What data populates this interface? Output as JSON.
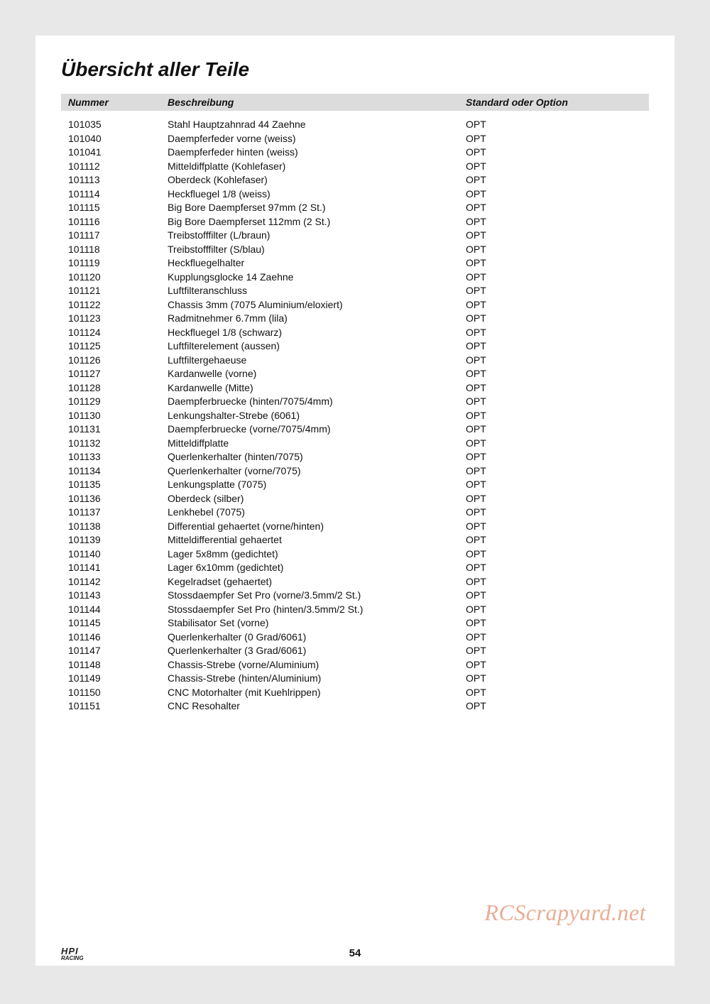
{
  "title": "Übersicht aller Teile",
  "headers": {
    "num": "Nummer",
    "desc": "Beschreibung",
    "opt": "Standard oder Option"
  },
  "rows": [
    {
      "num": "101035",
      "desc": "Stahl Hauptzahnrad 44 Zaehne",
      "opt": "OPT"
    },
    {
      "num": "101040",
      "desc": "Daempferfeder vorne (weiss)",
      "opt": "OPT"
    },
    {
      "num": "101041",
      "desc": "Daempferfeder hinten (weiss)",
      "opt": "OPT"
    },
    {
      "num": "101112",
      "desc": "Mitteldiffplatte (Kohlefaser)",
      "opt": "OPT"
    },
    {
      "num": "101113",
      "desc": "Oberdeck (Kohlefaser)",
      "opt": "OPT"
    },
    {
      "num": "101114",
      "desc": "Heckfluegel 1/8 (weiss)",
      "opt": "OPT"
    },
    {
      "num": "101115",
      "desc": "Big Bore Daempferset 97mm (2 St.)",
      "opt": "OPT"
    },
    {
      "num": "101116",
      "desc": "Big Bore Daempferset 112mm (2 St.)",
      "opt": "OPT"
    },
    {
      "num": "101117",
      "desc": "Treibstofffilter (L/braun)",
      "opt": "OPT"
    },
    {
      "num": "101118",
      "desc": "Treibstofffilter (S/blau)",
      "opt": "OPT"
    },
    {
      "num": "101119",
      "desc": "Heckfluegelhalter",
      "opt": "OPT"
    },
    {
      "num": "101120",
      "desc": "Kupplungsglocke 14 Zaehne",
      "opt": "OPT"
    },
    {
      "num": "101121",
      "desc": "Luftfilteranschluss",
      "opt": "OPT"
    },
    {
      "num": "101122",
      "desc": "Chassis 3mm (7075 Aluminium/eloxiert)",
      "opt": "OPT"
    },
    {
      "num": "101123",
      "desc": "Radmitnehmer 6.7mm (lila)",
      "opt": "OPT"
    },
    {
      "num": "101124",
      "desc": "Heckfluegel 1/8 (schwarz)",
      "opt": "OPT"
    },
    {
      "num": "101125",
      "desc": "Luftfilterelement (aussen)",
      "opt": "OPT"
    },
    {
      "num": "101126",
      "desc": "Luftfiltergehaeuse",
      "opt": "OPT"
    },
    {
      "num": "101127",
      "desc": "Kardanwelle (vorne)",
      "opt": "OPT"
    },
    {
      "num": "101128",
      "desc": "Kardanwelle (Mitte)",
      "opt": "OPT"
    },
    {
      "num": "101129",
      "desc": "Daempferbruecke (hinten/7075/4mm)",
      "opt": "OPT"
    },
    {
      "num": "101130",
      "desc": "Lenkungshalter-Strebe (6061)",
      "opt": "OPT"
    },
    {
      "num": "101131",
      "desc": "Daempferbruecke (vorne/7075/4mm)",
      "opt": "OPT"
    },
    {
      "num": "101132",
      "desc": "Mitteldiffplatte",
      "opt": "OPT"
    },
    {
      "num": "101133",
      "desc": "Querlenkerhalter (hinten/7075)",
      "opt": "OPT"
    },
    {
      "num": "101134",
      "desc": "Querlenkerhalter (vorne/7075)",
      "opt": "OPT"
    },
    {
      "num": "101135",
      "desc": "Lenkungsplatte (7075)",
      "opt": "OPT"
    },
    {
      "num": "101136",
      "desc": "Oberdeck (silber)",
      "opt": "OPT"
    },
    {
      "num": "101137",
      "desc": "Lenkhebel (7075)",
      "opt": "OPT"
    },
    {
      "num": "101138",
      "desc": "Differential gehaertet (vorne/hinten)",
      "opt": "OPT"
    },
    {
      "num": "101139",
      "desc": "Mitteldifferential gehaertet",
      "opt": "OPT"
    },
    {
      "num": "101140",
      "desc": "Lager 5x8mm (gedichtet)",
      "opt": "OPT"
    },
    {
      "num": "101141",
      "desc": "Lager 6x10mm (gedichtet)",
      "opt": "OPT"
    },
    {
      "num": "101142",
      "desc": "Kegelradset (gehaertet)",
      "opt": "OPT"
    },
    {
      "num": "101143",
      "desc": "Stossdaempfer Set Pro (vorne/3.5mm/2 St.)",
      "opt": "OPT"
    },
    {
      "num": "101144",
      "desc": "Stossdaempfer Set Pro (hinten/3.5mm/2 St.)",
      "opt": "OPT"
    },
    {
      "num": "101145",
      "desc": "Stabilisator Set (vorne)",
      "opt": "OPT"
    },
    {
      "num": "101146",
      "desc": "Querlenkerhalter (0 Grad/6061)",
      "opt": "OPT"
    },
    {
      "num": "101147",
      "desc": "Querlenkerhalter (3 Grad/6061)",
      "opt": "OPT"
    },
    {
      "num": "101148",
      "desc": "Chassis-Strebe (vorne/Aluminium)",
      "opt": "OPT"
    },
    {
      "num": "101149",
      "desc": "Chassis-Strebe (hinten/Aluminium)",
      "opt": "OPT"
    },
    {
      "num": "101150",
      "desc": "CNC Motorhalter (mit Kuehlrippen)",
      "opt": "OPT"
    },
    {
      "num": "101151",
      "desc": "CNC Resohalter",
      "opt": "OPT"
    }
  ],
  "pageNumber": "54",
  "logo": {
    "main": "HPI",
    "sub": "RACING"
  },
  "watermark": "RCScrapyard.net",
  "colors": {
    "pageBg": "#e8e8e8",
    "sheet": "#ffffff",
    "headerBg": "#dcdcdc",
    "text": "#111111",
    "watermark": "rgba(214,106,60,0.55)"
  },
  "layout": {
    "colNumWidth": 150,
    "colDescWidth": 420,
    "colOptWidth": 250,
    "titleFontSize": 28,
    "bodyFontSize": 14,
    "rowHeight": 19.5
  }
}
